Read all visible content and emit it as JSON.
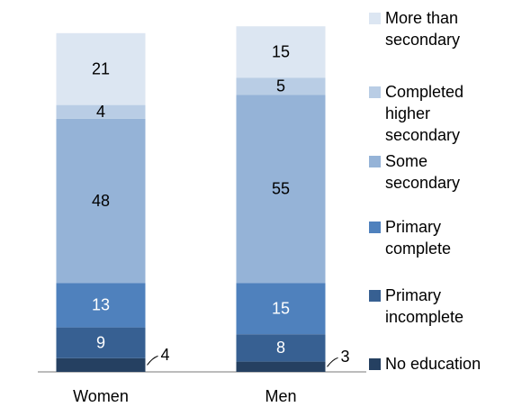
{
  "chart_data": {
    "type": "stacked_bar",
    "categories": [
      "Women",
      "Men"
    ],
    "series": [
      {
        "name": "No education",
        "color": "#254061",
        "values": [
          4,
          3
        ]
      },
      {
        "name": "Primary incomplete",
        "color": "#376092",
        "values": [
          9,
          8
        ]
      },
      {
        "name": "Primary complete",
        "color": "#4f81bd",
        "values": [
          13,
          15
        ]
      },
      {
        "name": "Some secondary",
        "color": "#95b3d7",
        "values": [
          48,
          55
        ]
      },
      {
        "name": "Completed higher secondary",
        "color": "#b9cde5",
        "values": [
          4,
          5
        ]
      },
      {
        "name": "More than secondary",
        "color": "#dce6f2",
        "values": [
          21,
          15
        ]
      }
    ]
  }
}
